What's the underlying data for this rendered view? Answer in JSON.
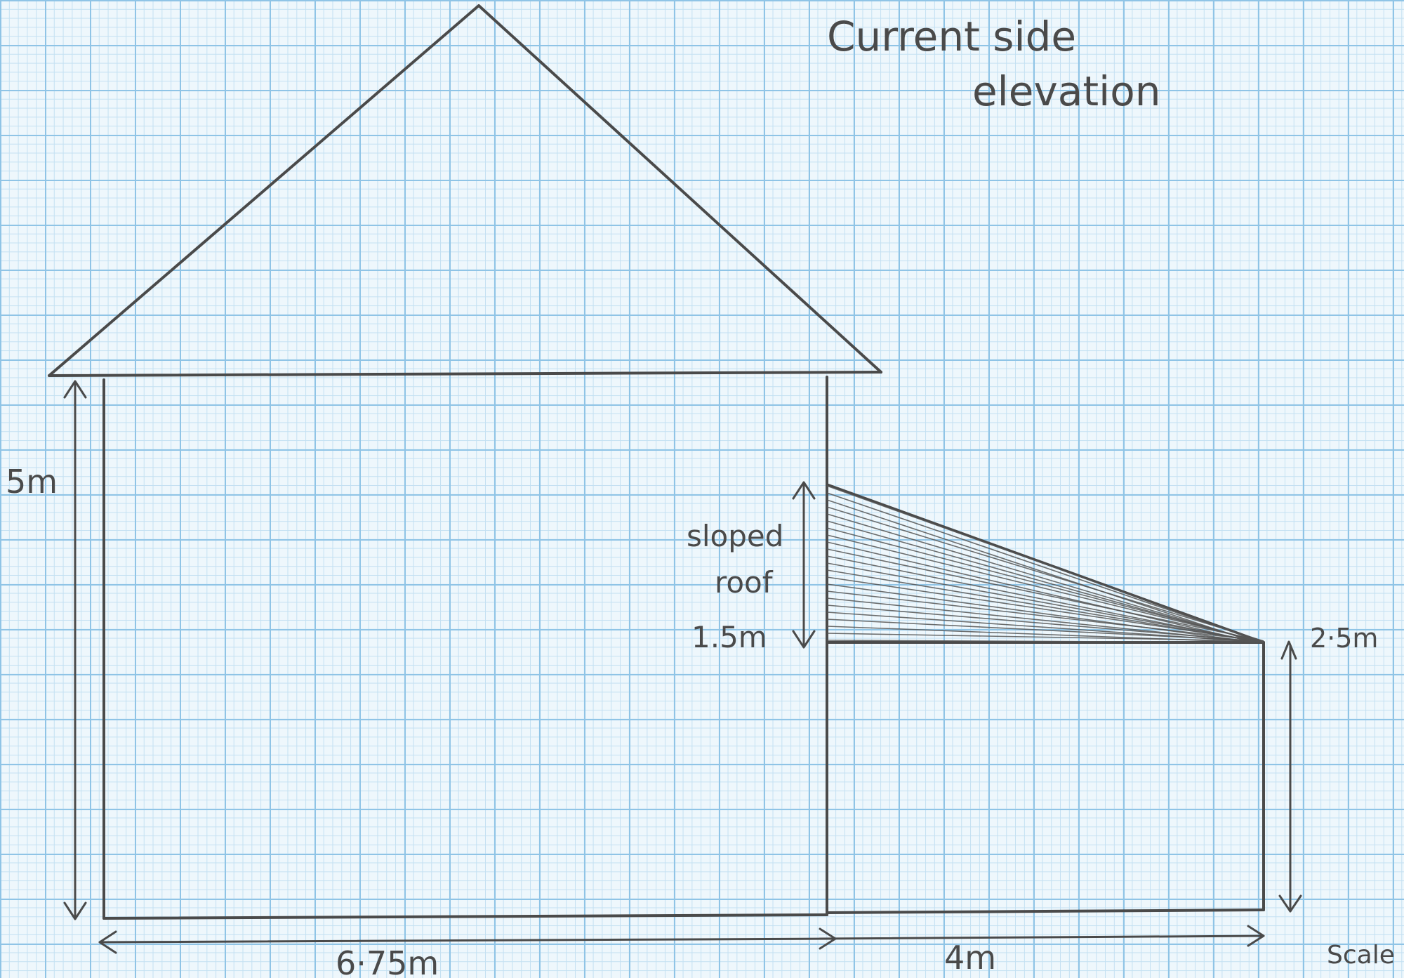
{
  "title_line1": "Current side",
  "title_line2": "elevation",
  "labels": {
    "main_height": "5m",
    "main_width": "6·75m",
    "extension_width": "4m",
    "extension_height": "2·5m",
    "roof_label_1": "sloped",
    "roof_label_2": "roof",
    "roof_height": "1.5m",
    "scale": "Scale"
  }
}
